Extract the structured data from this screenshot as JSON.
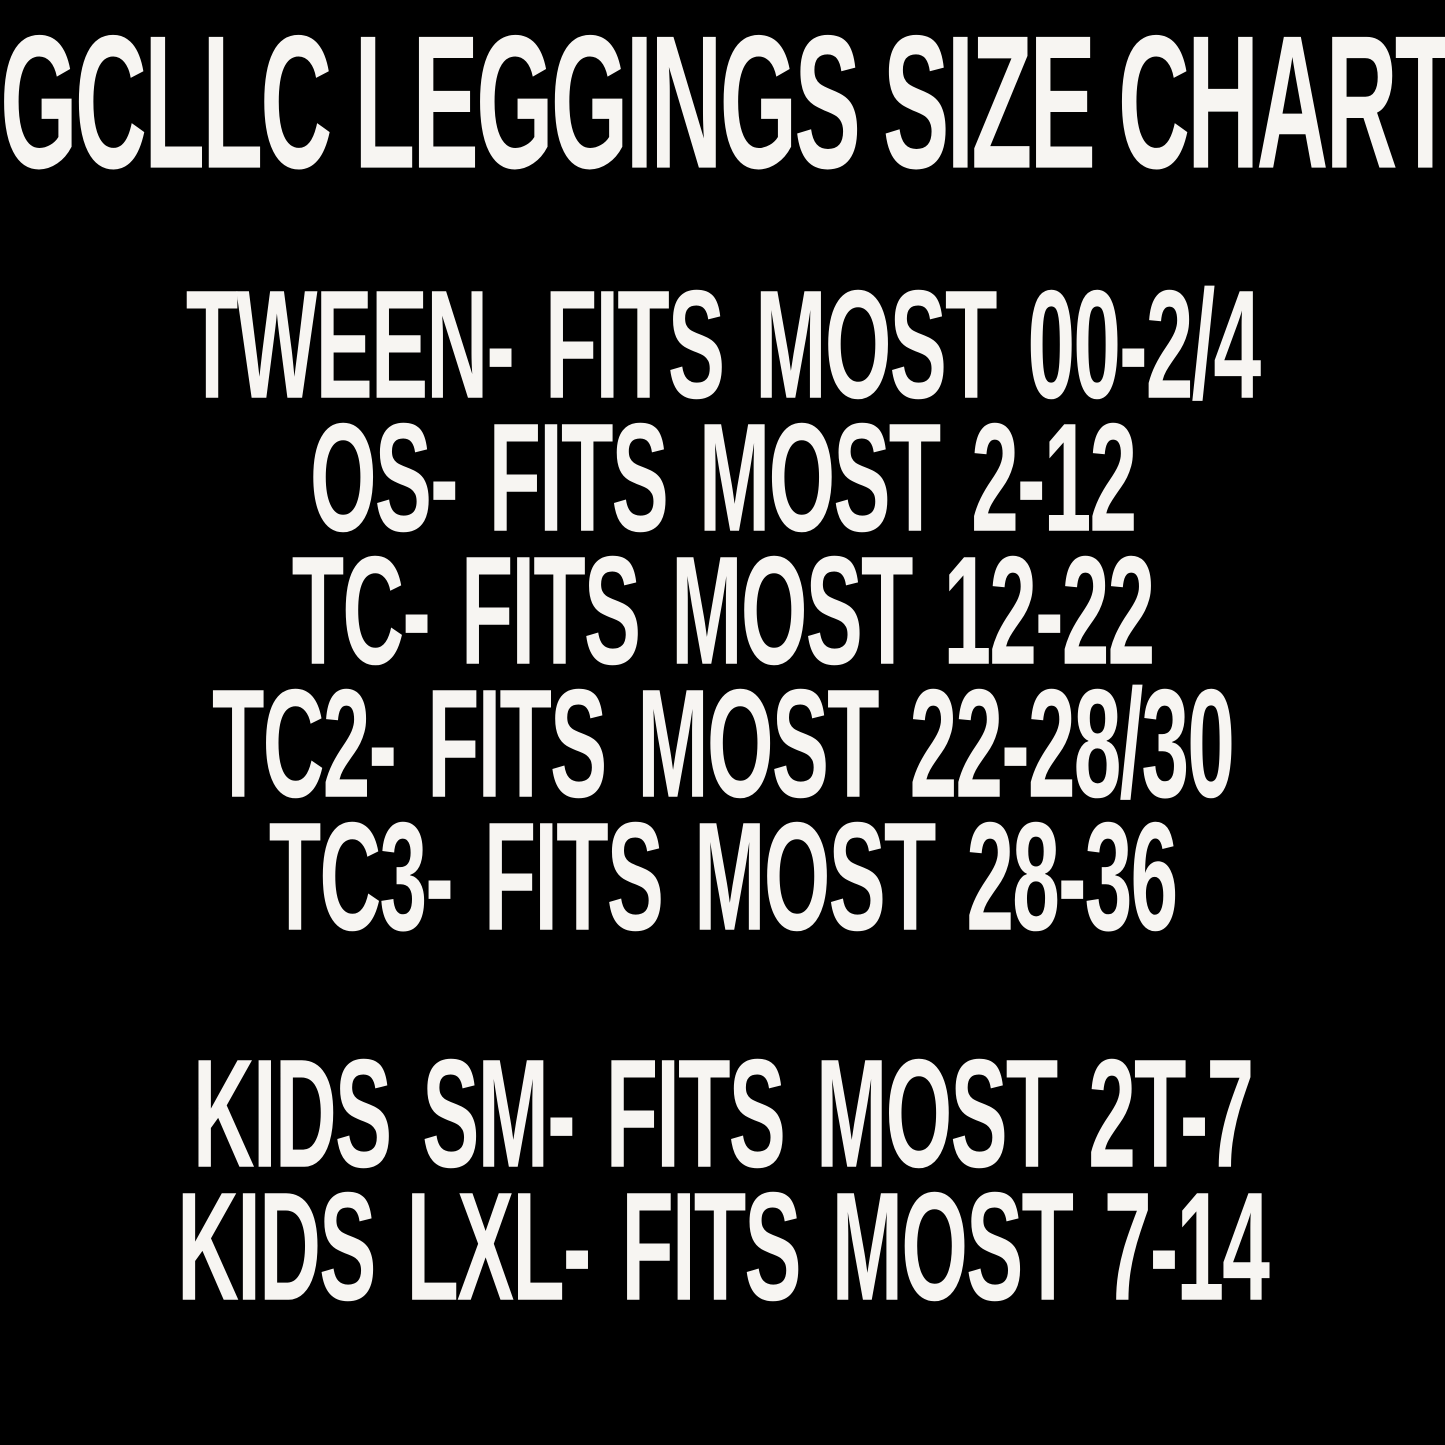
{
  "title": "GCLLC LEGGINGS SIZE CHART",
  "colors": {
    "background": "#000000",
    "text": "#f7f5f2"
  },
  "size_chart": {
    "adult_rows": [
      {
        "size": "TWEEN",
        "fits": "FITS MOST 00-2/4",
        "display": "TWEEN- FITS MOST 00-2/4"
      },
      {
        "size": "OS",
        "fits": "FITS MOST 2-12",
        "display": "OS- FITS MOST 2-12"
      },
      {
        "size": "TC",
        "fits": "FITS MOST 12-22",
        "display": "TC- FITS MOST 12-22"
      },
      {
        "size": "TC2",
        "fits": "FITS MOST 22-28/30",
        "display": "TC2- FITS MOST 22-28/30"
      },
      {
        "size": "TC3",
        "fits": "FITS MOST 28-36",
        "display": "TC3- FITS MOST 28-36"
      }
    ],
    "kids_rows": [
      {
        "size": "KIDS SM",
        "fits": "FITS MOST 2T-7",
        "display": "KIDS SM- FITS MOST 2T-7"
      },
      {
        "size": "KIDS LXL",
        "fits": "FITS MOST 7-14",
        "display": "KIDS LXL- FITS MOST 7-14"
      }
    ]
  }
}
